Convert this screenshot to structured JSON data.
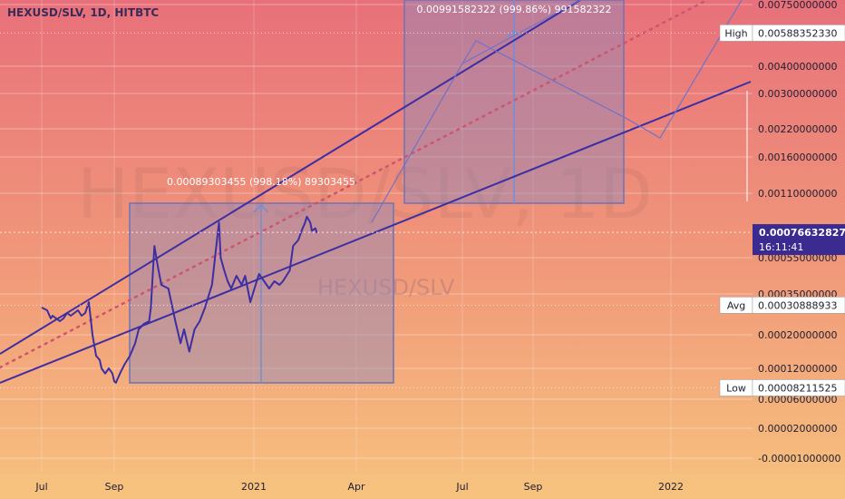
{
  "header": {
    "title": "HEXUSD/SLV, 1D, HITBTC"
  },
  "watermark": {
    "main": "HEXUSD/SLV, 1D",
    "sub": "HEXUSD/SLV"
  },
  "colors": {
    "bg_top": "#e8707a",
    "bg_bottom": "#f7c27e",
    "price_line": "#3d2ea3",
    "trendline": "#3d2ea3",
    "rect_fill": "#8c89bd",
    "dotted_line": "#cc5570",
    "price_badge": "#3b2a8f"
  },
  "chart_data": {
    "type": "line",
    "title": "HEXUSD/SLV, 1D, HITBTC",
    "xlabel": "",
    "ylabel": "",
    "y_axis_ticks": [
      "0.00750000000",
      "0.00400000000",
      "0.00300000000",
      "0.00220000000",
      "0.00160000000",
      "0.00110000000",
      "0.00055000000",
      "0.00035000000",
      "0.00020000000",
      "0.00012000000",
      "0.00006000000",
      "0.00002000000",
      "-0.00001000000"
    ],
    "x_axis_ticks": [
      "Jul",
      "Sep",
      "2021",
      "Apr",
      "Jul",
      "Sep",
      "2022"
    ],
    "price_x_months": [
      0.0,
      0.15,
      0.25,
      0.3,
      0.5,
      0.6,
      0.7,
      0.8,
      0.9,
      1.0,
      1.1,
      1.2,
      1.3,
      1.4,
      1.5,
      1.6,
      1.65,
      1.75,
      1.85,
      1.95,
      2.0,
      2.05,
      2.1,
      2.2,
      2.3,
      2.45,
      2.6,
      2.7,
      2.85,
      3.0,
      3.05,
      3.15,
      3.25,
      3.35,
      3.55,
      3.75,
      3.9,
      4.0,
      4.15,
      4.3,
      4.45,
      4.6,
      4.8,
      5.0,
      5.05,
      5.15,
      5.25,
      5.35,
      5.5,
      5.65,
      5.75,
      5.9,
      6.05,
      6.15,
      6.3,
      6.45,
      6.6,
      6.75,
      6.85,
      6.95,
      7.05,
      7.15,
      7.3,
      7.4,
      7.5,
      7.55,
      7.65,
      7.7,
      7.8,
      7.85
    ],
    "price_values": [
      0.0003,
      0.00029,
      0.00026,
      0.00027,
      0.00025,
      0.00026,
      0.00028,
      0.00027,
      0.00028,
      0.00029,
      0.00027,
      0.00028,
      0.00032,
      0.0002,
      0.00015,
      0.00014,
      0.00012,
      0.00011,
      0.00012,
      0.00011,
      9.5e-05,
      9.2e-05,
      0.0001,
      0.000115,
      0.00013,
      0.00015,
      0.00018,
      0.00022,
      0.00024,
      0.00025,
      0.0003,
      0.00065,
      0.0005,
      0.0004,
      0.00038,
      0.00025,
      0.00018,
      0.00022,
      0.00016,
      0.00022,
      0.00025,
      0.0003,
      0.0004,
      0.00085,
      0.00055,
      0.00048,
      0.00042,
      0.00038,
      0.00045,
      0.0004,
      0.00045,
      0.00032,
      0.0004,
      0.00046,
      0.00042,
      0.00038,
      0.00042,
      0.0004,
      0.00042,
      0.00045,
      0.00048,
      0.00065,
      0.0007,
      0.00078,
      0.00085,
      0.0009,
      0.00085,
      0.00078,
      0.0008,
      0.00076
    ],
    "last_price": "0.00076632827",
    "countdown": "16:11:41",
    "high": {
      "label": "High",
      "value": "0.00588352330"
    },
    "avg": {
      "label": "Avg",
      "value": "0.00030888933"
    },
    "low": {
      "label": "Low",
      "value": "0.00008211525"
    },
    "measurements": [
      {
        "text": "0.00089303455 (998.18%) 89303455"
      },
      {
        "text": "0.00991582322 (999.86%) 991582322"
      }
    ],
    "grid": true
  }
}
